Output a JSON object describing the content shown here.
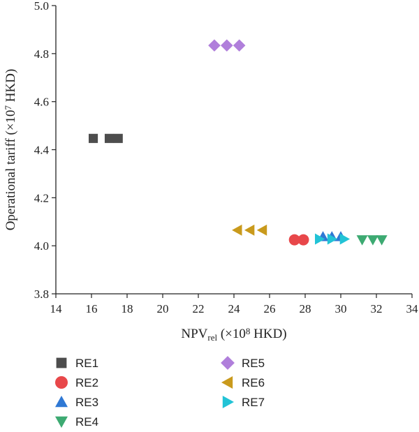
{
  "chart_data": {
    "type": "scatter",
    "title": "",
    "xlabel": "NPV",
    "xlabel_sub": "rel",
    "xlabel_rest": " (×10",
    "xlabel_sup": "8",
    "xlabel_end": " HKD)",
    "ylabel": "Operational tariff (×10",
    "ylabel_sup": "7",
    "ylabel_end": " HKD)",
    "xlim": [
      14,
      34
    ],
    "ylim": [
      3.8,
      5.0
    ],
    "xticks": [
      "14",
      "16",
      "18",
      "20",
      "22",
      "24",
      "26",
      "28",
      "30",
      "32",
      "34"
    ],
    "yticks": [
      "3.8",
      "4.0",
      "4.2",
      "4.4",
      "4.6",
      "4.8",
      "5.0"
    ],
    "grid": false,
    "legend_position": "bottom",
    "series": [
      {
        "name": "RE1",
        "marker": "square",
        "color": "#4d4d4d",
        "points": [
          [
            16.1,
            4.447
          ],
          [
            17.0,
            4.447
          ],
          [
            17.5,
            4.447
          ]
        ]
      },
      {
        "name": "RE2",
        "marker": "circle",
        "color": "#e8474a",
        "points": [
          [
            27.4,
            4.025
          ],
          [
            27.9,
            4.025
          ]
        ]
      },
      {
        "name": "RE3",
        "marker": "triangle-up",
        "color": "#2f78d4",
        "points": [
          [
            29.0,
            4.038
          ],
          [
            29.5,
            4.038
          ],
          [
            30.0,
            4.038
          ]
        ]
      },
      {
        "name": "RE4",
        "marker": "triangle-down",
        "color": "#3daa72",
        "points": [
          [
            31.2,
            4.025
          ],
          [
            31.8,
            4.025
          ],
          [
            32.3,
            4.025
          ]
        ]
      },
      {
        "name": "RE5",
        "marker": "diamond",
        "color": "#b07fdb",
        "points": [
          [
            22.9,
            4.834
          ],
          [
            23.6,
            4.834
          ],
          [
            24.3,
            4.834
          ]
        ]
      },
      {
        "name": "RE6",
        "marker": "triangle-left",
        "color": "#c99a1c",
        "points": [
          [
            24.2,
            4.065
          ],
          [
            24.9,
            4.065
          ],
          [
            25.6,
            4.065
          ]
        ]
      },
      {
        "name": "RE7",
        "marker": "triangle-right",
        "color": "#22c3d6",
        "points": [
          [
            28.8,
            4.028
          ],
          [
            29.5,
            4.028
          ],
          [
            30.2,
            4.028
          ]
        ]
      }
    ]
  }
}
